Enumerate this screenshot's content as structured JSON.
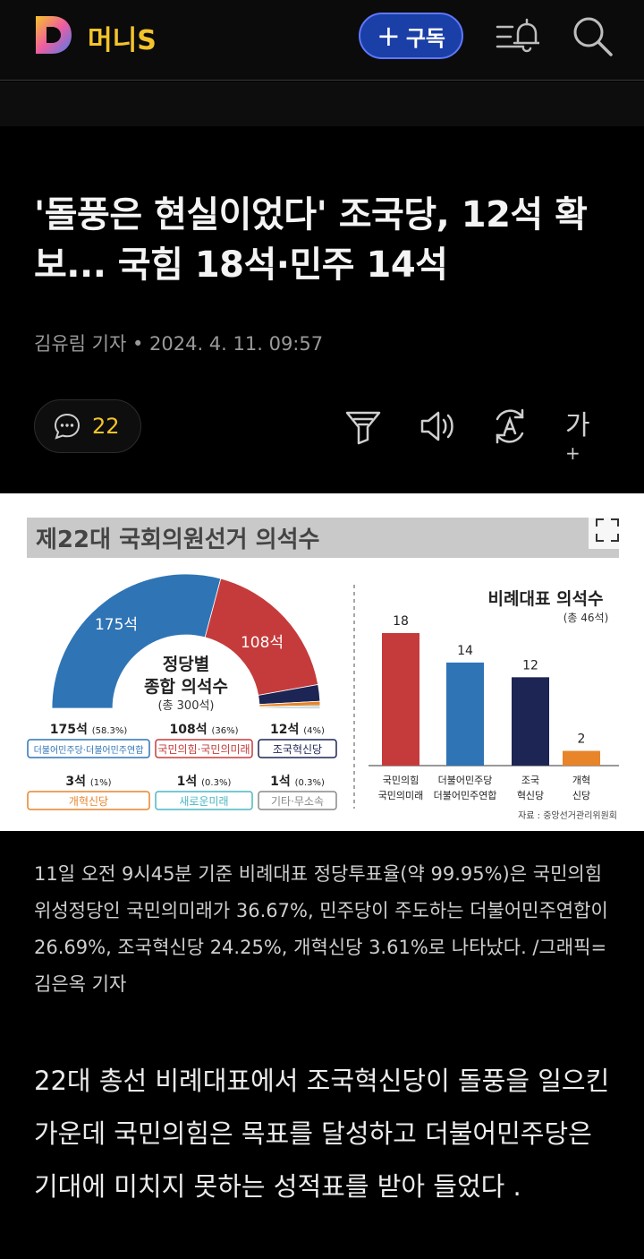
{
  "app": {
    "brand": "머니S",
    "subscribe_label": "구독",
    "subscribe_plus": "+"
  },
  "article": {
    "headline": "'돌풍은 현실이었다' 조국당, 12석 확보... 국힘 18석·민주 14석",
    "byline": "김유림 기자 • 2024. 4. 11. 09:57",
    "comment_count": "22",
    "caption": "11일 오전 9시45분 기준 비례대표 정당투표율(약 99.95%)은 국민의힘 위성정당인 국민의미래가 36.67%, 민주당이 주도하는 더불어민주연합이 26.69%, 조국혁신당 24.25%, 개혁신당 3.61%로 나타났다. /그래픽=김은옥 기자",
    "body": "22대 총선 비례대표에서 조국혁신당이 돌풍을 일으킨 가운데 국민의힘은 목표를 달성하고 더불어민주당은 기대에 미치지 못하는 성적표를 받아 들었다 ."
  },
  "toolbar": {
    "font_label": "가"
  },
  "figure": {
    "title": "제22대 국회의원선거 의석수",
    "donut": {
      "center_title_1": "정당별",
      "center_title_2": "종합 의석수",
      "center_sub": "(총 300석)",
      "label_dem": "175석",
      "label_ppp": "108석"
    },
    "parties": [
      {
        "seats": "175석",
        "pct": "(58.3%)",
        "name": "더불어민주당·더불어민주연합",
        "color": "#2f74b5"
      },
      {
        "seats": "108석",
        "pct": "(36%)",
        "name": "국민의힘·국민의미래",
        "color": "#c53b3b"
      },
      {
        "seats": "12석",
        "pct": "(4%)",
        "name": "조국혁신당",
        "color": "#1c2553"
      },
      {
        "seats": "3석",
        "pct": "(1%)",
        "name": "개혁신당",
        "color": "#e8842a"
      },
      {
        "seats": "1석",
        "pct": "(0.3%)",
        "name": "새로운미래",
        "color": "#4bb7c4"
      },
      {
        "seats": "1석",
        "pct": "(0.3%)",
        "name": "기타·무소속",
        "color": "#888888"
      }
    ],
    "source": "자료 : 중앙선거관리위원회"
  },
  "chart_data": [
    {
      "type": "pie",
      "title": "정당별 종합 의석수",
      "subtitle": "(총 300석)",
      "categories": [
        "더불어민주당·더불어민주연합",
        "국민의힘·국민의미래",
        "조국혁신당",
        "개혁신당",
        "새로운미래",
        "기타·무소속"
      ],
      "values": [
        175,
        108,
        12,
        3,
        1,
        1
      ],
      "colors": [
        "#2f74b5",
        "#c53b3b",
        "#1c2553",
        "#e8842a",
        "#4bb7c4",
        "#999999"
      ]
    },
    {
      "type": "bar",
      "title": "비례대표 의석수",
      "subtitle": "(총 46석)",
      "categories": [
        "국민의힘 국민의미래",
        "더불어민주당 더불어민주연합",
        "조국 혁신당",
        "개혁 신당"
      ],
      "cat_lines": [
        [
          "국민의힘",
          "국민의미래"
        ],
        [
          "더불어민주당",
          "더불어민주연합"
        ],
        [
          "조국",
          "혁신당"
        ],
        [
          "개혁",
          "신당"
        ]
      ],
      "values": [
        18,
        14,
        12,
        2
      ],
      "colors": [
        "#c53b3b",
        "#2f74b5",
        "#1c2553",
        "#e8842a"
      ],
      "ylim": [
        0,
        18
      ]
    }
  ]
}
